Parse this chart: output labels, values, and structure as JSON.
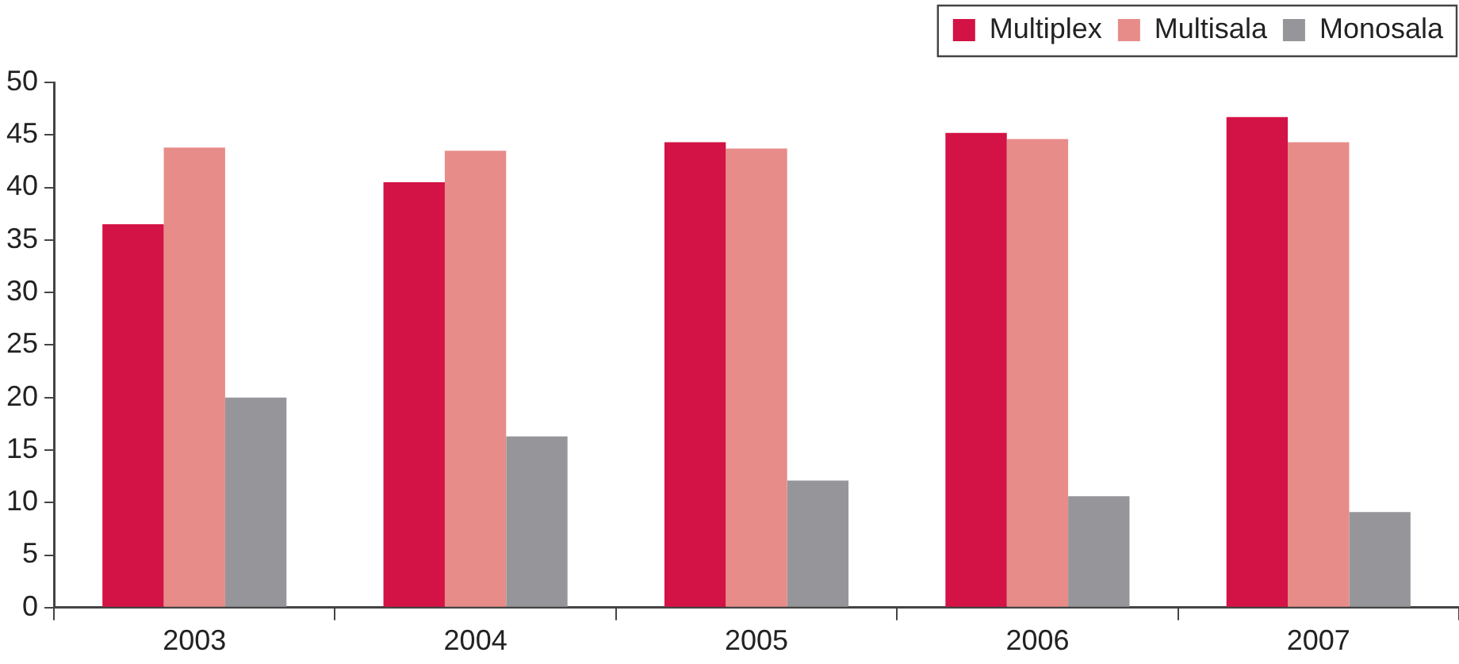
{
  "chart_data": {
    "type": "bar",
    "categories": [
      "2003",
      "2004",
      "2005",
      "2006",
      "2007"
    ],
    "series": [
      {
        "name": "Multiplex",
        "color": "#d31245",
        "values": [
          36.5,
          40.5,
          44.3,
          45.2,
          46.7
        ]
      },
      {
        "name": "Multisala",
        "color": "#e78c89",
        "values": [
          43.8,
          43.5,
          43.7,
          44.6,
          44.3
        ]
      },
      {
        "name": "Monosala",
        "color": "#96969a",
        "values": [
          20,
          16.3,
          12.1,
          10.6,
          9.1
        ]
      }
    ],
    "ylim": [
      0,
      50
    ],
    "yticks": [
      0,
      5,
      10,
      15,
      20,
      25,
      30,
      35,
      40,
      45,
      50
    ],
    "grid": false,
    "legend": "top right"
  }
}
